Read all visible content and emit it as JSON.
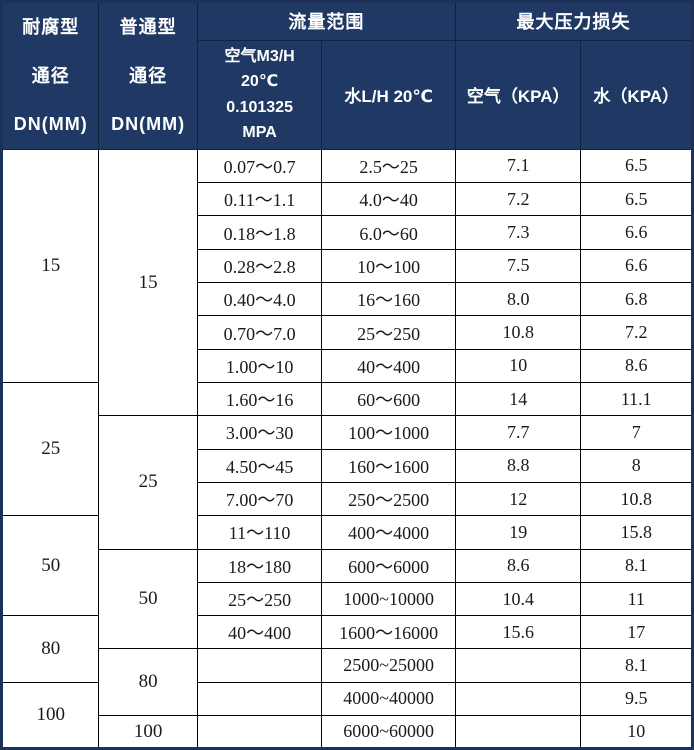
{
  "table": {
    "header": {
      "corrosion_dn_lines": [
        "耐腐型",
        "通径",
        "DN(MM)"
      ],
      "normal_dn_lines": [
        "普通型",
        "通径",
        "DN(MM)"
      ],
      "flow_range_label": "流量范围",
      "max_pressure_loss_label": "最大压力损失",
      "air_flow_lines": [
        "空气M3/H",
        "20℃",
        "0.101325",
        "MPA"
      ],
      "water_flow_label": "水L/H 20℃",
      "air_kpa_label": "空气（KPA）",
      "water_kpa_label": "水（KPA）"
    },
    "corrosion_dn_spans": [
      {
        "value": "15",
        "rows": 7
      },
      {
        "value": "25",
        "rows": 4
      },
      {
        "value": "50",
        "rows": 3
      },
      {
        "value": "80",
        "rows": 2
      },
      {
        "value": "100",
        "rows": 2
      }
    ],
    "normal_dn_spans": [
      {
        "value": "15",
        "rows": 8
      },
      {
        "value": "25",
        "rows": 4
      },
      {
        "value": "50",
        "rows": 3
      },
      {
        "value": "80",
        "rows": 2
      },
      {
        "value": "100",
        "rows": 1
      }
    ],
    "rows": [
      {
        "air_flow": "0.07～0.7",
        "water_flow": "2.5～25",
        "air_kpa": "7.1",
        "water_kpa": "6.5"
      },
      {
        "air_flow": "0.11～1.1",
        "water_flow": "4.0～40",
        "air_kpa": "7.2",
        "water_kpa": "6.5"
      },
      {
        "air_flow": "0.18～1.8",
        "water_flow": "6.0～60",
        "air_kpa": "7.3",
        "water_kpa": "6.6"
      },
      {
        "air_flow": "0.28～2.8",
        "water_flow": "10～100",
        "air_kpa": "7.5",
        "water_kpa": "6.6"
      },
      {
        "air_flow": "0.40～4.0",
        "water_flow": "16～160",
        "air_kpa": "8.0",
        "water_kpa": "6.8"
      },
      {
        "air_flow": "0.70～7.0",
        "water_flow": "25～250",
        "air_kpa": "10.8",
        "water_kpa": "7.2"
      },
      {
        "air_flow": "1.00～10",
        "water_flow": "40～400",
        "air_kpa": "10",
        "water_kpa": "8.6"
      },
      {
        "air_flow": "1.60～16",
        "water_flow": "60～600",
        "air_kpa": "14",
        "water_kpa": "11.1"
      },
      {
        "air_flow": "3.00～30",
        "water_flow": "100～1000",
        "air_kpa": "7.7",
        "water_kpa": "7"
      },
      {
        "air_flow": "4.50～45",
        "water_flow": "160～1600",
        "air_kpa": "8.8",
        "water_kpa": "8"
      },
      {
        "air_flow": "7.00～70",
        "water_flow": "250～2500",
        "air_kpa": "12",
        "water_kpa": "10.8"
      },
      {
        "air_flow": "11～110",
        "water_flow": "400～4000",
        "air_kpa": "19",
        "water_kpa": "15.8"
      },
      {
        "air_flow": "18～180",
        "water_flow": "600～6000",
        "air_kpa": "8.6",
        "water_kpa": "8.1"
      },
      {
        "air_flow": "25～250",
        "water_flow": "1000~10000",
        "air_kpa": "10.4",
        "water_kpa": "11"
      },
      {
        "air_flow": "40～400",
        "water_flow": "1600～16000",
        "air_kpa": "15.6",
        "water_kpa": "17"
      },
      {
        "air_flow": "",
        "water_flow": "2500~25000",
        "air_kpa": "",
        "water_kpa": "8.1"
      },
      {
        "air_flow": "",
        "water_flow": "4000~40000",
        "air_kpa": "",
        "water_kpa": "9.5"
      },
      {
        "air_flow": "",
        "water_flow": "6000~60000",
        "air_kpa": "",
        "water_kpa": "10"
      }
    ],
    "colors": {
      "header_bg": "#1f3864",
      "header_text": "#ffffff",
      "grid_line": "#000000",
      "outer_border": "#1c3157",
      "body_text": "#1a1a1a"
    }
  }
}
